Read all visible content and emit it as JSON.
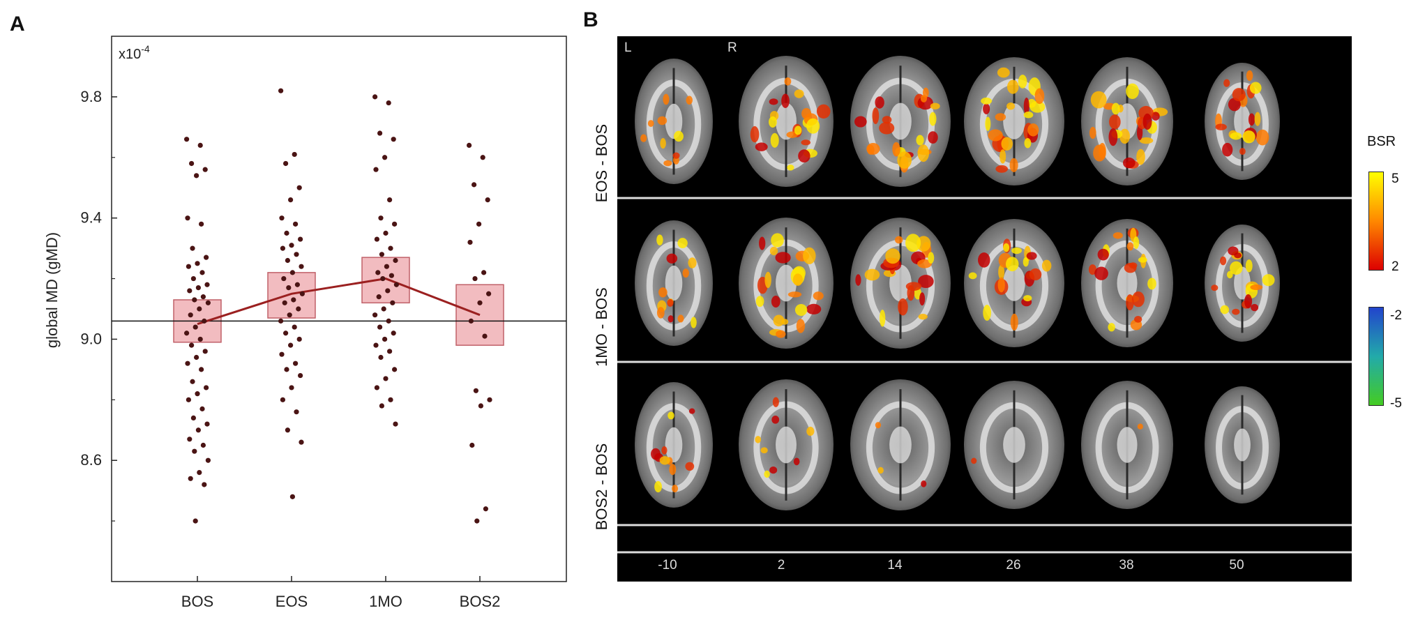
{
  "panel_labels": {
    "a": "A",
    "b": "B"
  },
  "chart_data": {
    "type": "box-scatter",
    "ylabel": "global MD  (gMD)",
    "y_multiplier": "x10",
    "y_multiplier_exp": "-4",
    "ylim": [
      8.2,
      10.0
    ],
    "yticks": [
      "8.6",
      "9.0",
      "9.4",
      "9.8"
    ],
    "ytick_values": [
      8.6,
      9.0,
      9.4,
      9.8
    ],
    "categories": [
      "BOS",
      "EOS",
      "1MO",
      "BOS2"
    ],
    "mean_line": [
      9.05,
      9.15,
      9.2,
      9.08
    ],
    "reference_line": 9.06,
    "boxes": [
      {
        "low": 8.99,
        "high": 9.13
      },
      {
        "low": 9.07,
        "high": 9.22
      },
      {
        "low": 9.12,
        "high": 9.27
      },
      {
        "low": 8.98,
        "high": 9.18
      }
    ],
    "points": [
      [
        9.66,
        9.64,
        9.58,
        9.56,
        9.54,
        9.4,
        9.38,
        9.3,
        9.27,
        9.25,
        9.24,
        9.22,
        9.2,
        9.18,
        9.17,
        9.16,
        9.14,
        9.13,
        9.12,
        9.1,
        9.08,
        9.06,
        9.04,
        9.02,
        9.0,
        8.98,
        8.96,
        8.94,
        8.92,
        8.9,
        8.86,
        8.84,
        8.82,
        8.8,
        8.77,
        8.74,
        8.72,
        8.7,
        8.67,
        8.65,
        8.63,
        8.6,
        8.56,
        8.54,
        8.52,
        8.4
      ],
      [
        9.82,
        9.61,
        9.58,
        9.5,
        9.46,
        9.4,
        9.38,
        9.35,
        9.33,
        9.31,
        9.3,
        9.28,
        9.26,
        9.24,
        9.22,
        9.2,
        9.18,
        9.17,
        9.15,
        9.13,
        9.12,
        9.1,
        9.08,
        9.06,
        9.04,
        9.02,
        9.0,
        8.98,
        8.95,
        8.92,
        8.9,
        8.88,
        8.84,
        8.8,
        8.76,
        8.7,
        8.66,
        8.48
      ],
      [
        9.8,
        9.78,
        9.68,
        9.66,
        9.6,
        9.56,
        9.46,
        9.4,
        9.38,
        9.35,
        9.33,
        9.3,
        9.28,
        9.26,
        9.24,
        9.22,
        9.21,
        9.2,
        9.18,
        9.16,
        9.14,
        9.12,
        9.1,
        9.08,
        9.06,
        9.04,
        9.02,
        9.0,
        8.98,
        8.96,
        8.94,
        8.9,
        8.87,
        8.84,
        8.8,
        8.78,
        8.72
      ],
      [
        9.64,
        9.6,
        9.51,
        9.46,
        9.38,
        9.32,
        9.22,
        9.2,
        9.15,
        9.12,
        9.06,
        9.01,
        8.83,
        8.8,
        8.78,
        8.65,
        8.44,
        8.4
      ]
    ],
    "color_points": "#4a1414",
    "color_line": "#9b2020",
    "color_box_fill": "#f2bcc0",
    "color_box_stroke": "#c06068"
  },
  "brain_figure": {
    "row_labels": [
      "EOS - BOS",
      "1MO - BOS",
      "BOS2 - BOS"
    ],
    "slice_coords": [
      "-10",
      "2",
      "14",
      "26",
      "38",
      "50"
    ],
    "orientation": {
      "left": "L",
      "right": "R"
    },
    "colorbar": {
      "title": "BSR",
      "positive_ticks": [
        "5",
        "2"
      ],
      "negative_ticks": [
        "-2",
        "-5"
      ],
      "positive_colors": [
        "#ffff00",
        "#ff8800",
        "#dd0000"
      ],
      "negative_colors": [
        "#2244cc",
        "#22aaaa",
        "#44cc22"
      ]
    },
    "activation_levels": [
      [
        0.35,
        0.75,
        0.8,
        0.9,
        0.85,
        0.7
      ],
      [
        0.45,
        0.8,
        0.85,
        0.75,
        0.7,
        0.6
      ],
      [
        0.4,
        0.3,
        0.12,
        0.05,
        0.03,
        0.0
      ]
    ]
  }
}
